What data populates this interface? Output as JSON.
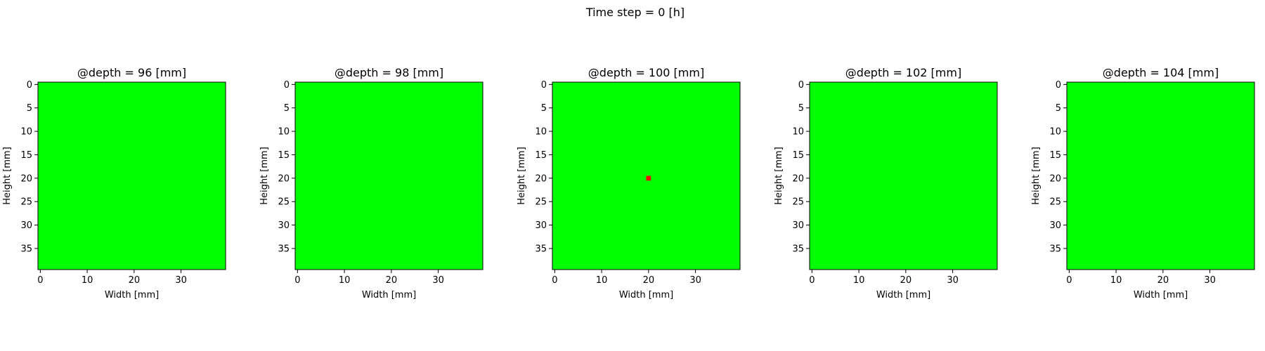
{
  "figure": {
    "suptitle": "Time step = 0 [h]"
  },
  "chart_data": [
    {
      "type": "heatmap",
      "title": "@depth = 96 [mm]",
      "xlabel": "Width [mm]",
      "ylabel": "Height [mm]",
      "grid_size": [
        40,
        40
      ],
      "x_ticks": [
        0,
        10,
        20,
        30
      ],
      "y_ticks": [
        0,
        5,
        10,
        15,
        20,
        25,
        30,
        35
      ],
      "y_inverted": true,
      "background_color": "#00ff00",
      "hotspots": []
    },
    {
      "type": "heatmap",
      "title": "@depth = 98 [mm]",
      "xlabel": "Width [mm]",
      "ylabel": "Height [mm]",
      "grid_size": [
        40,
        40
      ],
      "x_ticks": [
        0,
        10,
        20,
        30
      ],
      "y_ticks": [
        0,
        5,
        10,
        15,
        20,
        25,
        30,
        35
      ],
      "y_inverted": true,
      "background_color": "#00ff00",
      "hotspots": []
    },
    {
      "type": "heatmap",
      "title": "@depth = 100 [mm]",
      "xlabel": "Width [mm]",
      "ylabel": "Height [mm]",
      "grid_size": [
        40,
        40
      ],
      "x_ticks": [
        0,
        10,
        20,
        30
      ],
      "y_ticks": [
        0,
        5,
        10,
        15,
        20,
        25,
        30,
        35
      ],
      "y_inverted": true,
      "background_color": "#00ff00",
      "hotspots": [
        {
          "x": 20,
          "y": 20,
          "color": "#ff0000"
        }
      ]
    },
    {
      "type": "heatmap",
      "title": "@depth = 102 [mm]",
      "xlabel": "Width [mm]",
      "ylabel": "Height [mm]",
      "grid_size": [
        40,
        40
      ],
      "x_ticks": [
        0,
        10,
        20,
        30
      ],
      "y_ticks": [
        0,
        5,
        10,
        15,
        20,
        25,
        30,
        35
      ],
      "y_inverted": true,
      "background_color": "#00ff00",
      "hotspots": []
    },
    {
      "type": "heatmap",
      "title": "@depth = 104 [mm]",
      "xlabel": "Width [mm]",
      "ylabel": "Height [mm]",
      "grid_size": [
        40,
        40
      ],
      "x_ticks": [
        0,
        10,
        20,
        30
      ],
      "y_ticks": [
        0,
        5,
        10,
        15,
        20,
        25,
        30,
        35
      ],
      "y_inverted": true,
      "background_color": "#00ff00",
      "hotspots": []
    }
  ]
}
